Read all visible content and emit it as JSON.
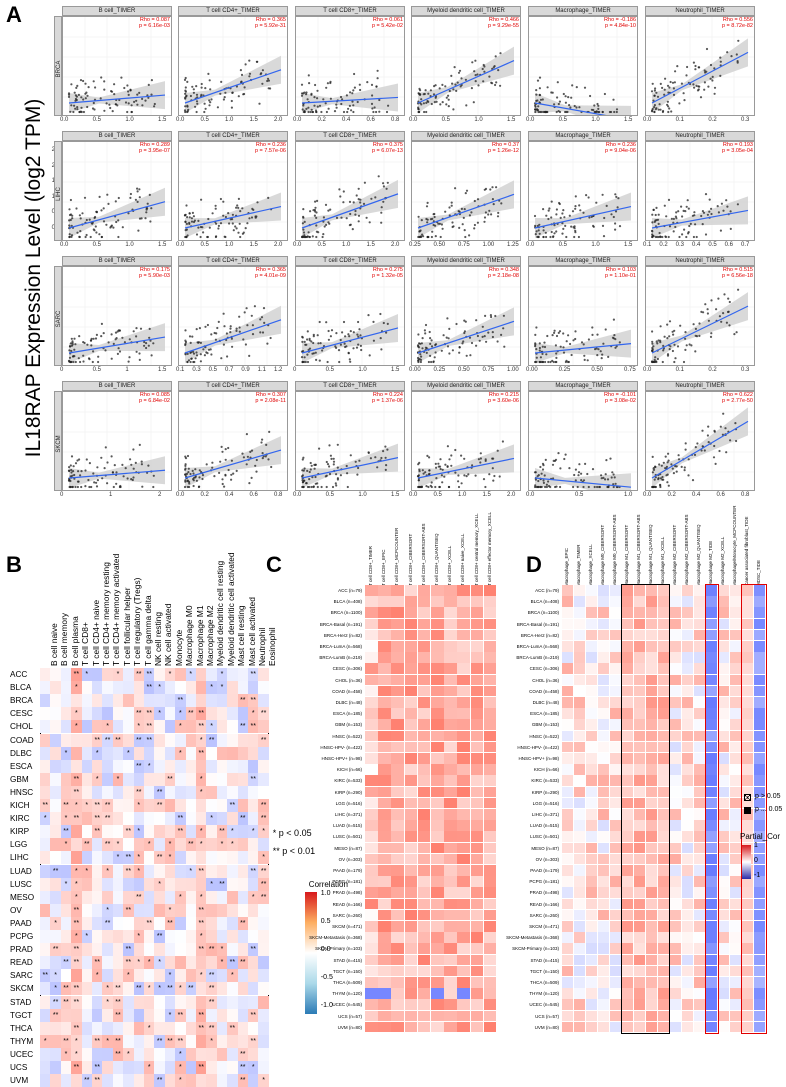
{
  "panels": {
    "a": "A",
    "b": "B",
    "c": "C",
    "d": "D"
  },
  "panel_a": {
    "ylabel": "IL18RAP Expression Level (log2 TPM)",
    "rows": [
      {
        "cancer": "BRCA",
        "yticks": [
          "0",
          "1",
          "2",
          "3"
        ],
        "plots": [
          {
            "title": "B cell_TIMER",
            "rho": "Rho = 0.087",
            "p": "p = 6.16e-03",
            "xticks": [
              "0.0",
              "0.5",
              "1.0",
              "1.5"
            ]
          },
          {
            "title": "T cell CD4+_TIMER",
            "rho": "Rho = 0.365",
            "p": "p = 5.92e-31",
            "xticks": [
              "0.0",
              "0.5",
              "1.0",
              "1.5",
              "2.0"
            ]
          },
          {
            "title": "T cell CD8+_TIMER",
            "rho": "Rho = 0.061",
            "p": "p = 5.42e-02",
            "xticks": [
              "0.0",
              "0.2",
              "0.4",
              "0.6",
              "0.8"
            ]
          },
          {
            "title": "Myeloid dendritic cell_TIMER",
            "rho": "Rho = 0.466",
            "p": "p = 9.29e-55",
            "xticks": [
              "0.0",
              "0.5",
              "1.0",
              "1.5"
            ]
          },
          {
            "title": "Macrophage_TIMER",
            "rho": "Rho = -0.186",
            "p": "p = 4.84e-10",
            "xticks": [
              "0.0",
              "0.5",
              "1.0",
              "1.5"
            ]
          },
          {
            "title": "Neutrophil_TIMER",
            "rho": "Rho = 0.556",
            "p": "p = 8.72e-82",
            "xticks": [
              "0.0",
              "0.1",
              "0.2",
              "0.3"
            ]
          }
        ]
      },
      {
        "cancer": "LIHC",
        "yticks": [
          "0.0",
          "0.5",
          "1.0",
          "1.5",
          "2.0",
          "2.5"
        ],
        "plots": [
          {
            "title": "B cell_TIMER",
            "rho": "Rho = 0.289",
            "p": "p = 3.95e-07",
            "xticks": [
              "0.0",
              "0.5",
              "1.0",
              "1.5"
            ]
          },
          {
            "title": "T cell CD4+_TIMER",
            "rho": "Rho = 0.236",
            "p": "p = 7.57e-06",
            "xticks": [
              "0.0",
              "0.5",
              "1.0",
              "1.5",
              "2.0"
            ]
          },
          {
            "title": "T cell CD8+_TIMER",
            "rho": "Rho = 0.375",
            "p": "p = 6.07e-13",
            "xticks": [
              "0.0",
              "0.5",
              "1.0",
              "1.5",
              "2.0"
            ]
          },
          {
            "title": "Myeloid dendritic cell_TIMER",
            "rho": "Rho = 0.37",
            "p": "p = 1.26e-12",
            "xticks": [
              "0.25",
              "0.50",
              "0.75",
              "1.00",
              "1.25"
            ]
          },
          {
            "title": "Macrophage_TIMER",
            "rho": "Rho = 0.236",
            "p": "p = 9.04e-06",
            "xticks": [
              "0.0",
              "0.5",
              "1.0",
              "1.5"
            ]
          },
          {
            "title": "Neutrophil_TIMER",
            "rho": "Rho = 0.193",
            "p": "p = 3.05e-04",
            "xticks": [
              "0.1",
              "0.2",
              "0.3",
              "0.4",
              "0.5",
              "0.6",
              "0.7"
            ]
          }
        ]
      },
      {
        "cancer": "SARC",
        "yticks": [
          "0",
          "2",
          "4",
          "6",
          "8"
        ],
        "plots": [
          {
            "title": "B cell_TIMER",
            "rho": "Rho = 0.175",
            "p": "p = 5.90e-03",
            "xticks": [
              "0",
              "0.5",
              "1",
              "1.5"
            ]
          },
          {
            "title": "T cell CD4+_TIMER",
            "rho": "Rho = 0.365",
            "p": "p = 4.01e-09",
            "xticks": [
              "0.1",
              "0.3",
              "0.5",
              "0.7",
              "0.9",
              "1.1",
              "1.2"
            ]
          },
          {
            "title": "T cell CD8+_TIMER",
            "rho": "Rho = 0.275",
            "p": "p = 1.32e-05",
            "xticks": [
              "0",
              "0.5",
              "1.0",
              "1.5"
            ]
          },
          {
            "title": "Myeloid dendritic cell_TIMER",
            "rho": "Rho = 0.348",
            "p": "p = 2.18e-08",
            "xticks": [
              "0.00",
              "0.25",
              "0.50",
              "0.75",
              "1.00"
            ]
          },
          {
            "title": "Macrophage_TIMER",
            "rho": "Rho = 0.103",
            "p": "p = 1.10e-01",
            "xticks": [
              "0.00",
              "0.25",
              "0.50",
              "0.75"
            ]
          },
          {
            "title": "Neutrophil_TIMER",
            "rho": "Rho = 0.515",
            "p": "p = 6.56e-18",
            "xticks": [
              "0.0",
              "0.1",
              "0.2",
              "0.3"
            ]
          }
        ]
      },
      {
        "cancer": "SKCM",
        "yticks": [
          "0",
          "2",
          "4",
          "6"
        ],
        "plots": [
          {
            "title": "B cell_TIMER",
            "rho": "Rho = 0.085",
            "p": "p = 6.84e-02",
            "xticks": [
              "0",
              "1",
              "2"
            ]
          },
          {
            "title": "T cell CD4+_TIMER",
            "rho": "Rho = 0.307",
            "p": "p = 2.08e-11",
            "xticks": [
              "0.0",
              "0.2",
              "0.4",
              "0.6",
              "0.8"
            ]
          },
          {
            "title": "T cell CD8+_TIMER",
            "rho": "Rho = 0.224",
            "p": "p = 1.37e-06",
            "xticks": [
              "0.0",
              "0.5",
              "1.0",
              "1.5"
            ]
          },
          {
            "title": "Myeloid dendritic cell_TIMER",
            "rho": "Rho = 0.215",
            "p": "p = 3.60e-06",
            "xticks": [
              "0.0",
              "0.5",
              "1.0",
              "1.5",
              "2.0"
            ]
          },
          {
            "title": "Macrophage_TIMER",
            "rho": "Rho = -0.101",
            "p": "p = 3.08e-02",
            "xticks": [
              "0.0",
              "0.5",
              "1.0"
            ]
          },
          {
            "title": "Neutrophil_TIMER",
            "rho": "Rho = 0.622",
            "p": "p = 2.77e-50",
            "xticks": [
              "0.0",
              "0.2",
              "0.4",
              "0.6",
              "0.8"
            ]
          }
        ]
      }
    ]
  },
  "panel_b": {
    "columns": [
      "B cell naive",
      "B cell memory",
      "B cell plasma",
      "T cell CD8+",
      "T cell CD4+ naive",
      "T cell CD4+ memory resting",
      "T cell CD4+ memory activated",
      "T cell follicular helper",
      "T cell regulatory (Tregs)",
      "T cell gamma delta",
      "NK cell resting",
      "NK cell activated",
      "Monocyte",
      "Macrophage M0",
      "Macrophage M1",
      "Macrophage M2",
      "Myeloid dendritic cell resting",
      "Myeloid dendritic cell activated",
      "Mast cell resting",
      "Mast cell activated",
      "Neutrophil",
      "Eosinophil"
    ],
    "rows": [
      "ACC",
      "BLCA",
      "BRCA",
      "CESC",
      "CHOL",
      "COAD",
      "DLBC",
      "ESCA",
      "GBM",
      "HNSC",
      "KICH",
      "KIRC",
      "KIRP",
      "LGG",
      "LIHC",
      "LUAD",
      "LUSC",
      "MESO",
      "OV",
      "PAAD",
      "PCPG",
      "PRAD",
      "READ",
      "SARC",
      "SKCM",
      "STAD",
      "TGCT",
      "THCA",
      "THYM",
      "UCEC",
      "UCS",
      "UVM"
    ],
    "sig1": "* p < 0.05",
    "sig2": "** p < 0.01",
    "legend_title": "Correlation",
    "legend_ticks": [
      "1.0",
      "0.5",
      "0.0",
      "-0.5",
      "-1.0"
    ]
  },
  "panel_c": {
    "columns": [
      "T cell CD8+_TIMER",
      "T cell CD8+_EPIC",
      "T cell CD8+_MCPCOUNTER",
      "T cell CD8+_CIBERSORT",
      "T cell CD8+_CIBERSORT-ABS",
      "T cell CD8+_QUANTISEQ",
      "T cell CD8+_XCELL",
      "T cell CD8+ naive_XCELL",
      "T cell CD8+ central memory_XCELL",
      "T cell CD8+ effector memory_XCELL"
    ],
    "rows": [
      "ACC (n=79)",
      "BLCA (n=408)",
      "BRCA (n=1100)",
      "BRCA-Basal (n=191)",
      "BRCA-Her2 (n=82)",
      "BRCA-LumA (n=568)",
      "BRCA-LumB (n=219)",
      "CESC (n=306)",
      "CHOL (n=36)",
      "COAD (n=458)",
      "DLBC (n=48)",
      "ESCA (n=185)",
      "GBM (n=153)",
      "HNSC (n=522)",
      "HNSC-HPV- (n=422)",
      "HNSC-HPV+ (n=98)",
      "KICH (n=66)",
      "KIRC (n=533)",
      "KIRP (n=290)",
      "LGG (n=516)",
      "LIHC (n=371)",
      "LUAD (n=515)",
      "LUSC (n=501)",
      "MESO (n=87)",
      "OV (n=303)",
      "PAAD (n=179)",
      "PCPG (n=181)",
      "PRAD (n=498)",
      "READ (n=166)",
      "SARC (n=260)",
      "SKCM (n=471)",
      "SKCM-Metastasis (n=368)",
      "SKCM-Primary (n=103)",
      "STAD (n=415)",
      "TGCT (n=150)",
      "THCA (n=509)",
      "THYM (n=120)",
      "UCEC (n=545)",
      "UCS (n=57)",
      "UVM (n=80)"
    ]
  },
  "panel_d": {
    "columns": [
      "Macrophage_EPIC",
      "Macrophage_TIMER",
      "Macrophage_XCELL",
      "Macrophage M0_CIBERSORT",
      "Macrophage M0_CIBERSORT-ABS",
      "Macrophage M1_CIBERSORT",
      "Macrophage M1_CIBERSORT-ABS",
      "Macrophage M1_QUANTISEQ",
      "Macrophage M1_XCELL",
      "Macrophage M2_CIBERSORT",
      "Macrophage M2_CIBERSORT-ABS",
      "Macrophage M2_QUANTISEQ",
      "Macrophage M2_TIDE",
      "Macrophage M2_XCELL",
      "Macrophage/Monocyte_MCPCOUNTER",
      "Cancer associated fibroblast_TIDE",
      "MDSC_TIDE"
    ],
    "legend_pvals": [
      "p > 0.05",
      "p ... 0.05"
    ],
    "legend_title": "Partial_Cor",
    "legend_ticks": [
      "1",
      "0",
      "-1"
    ]
  }
}
